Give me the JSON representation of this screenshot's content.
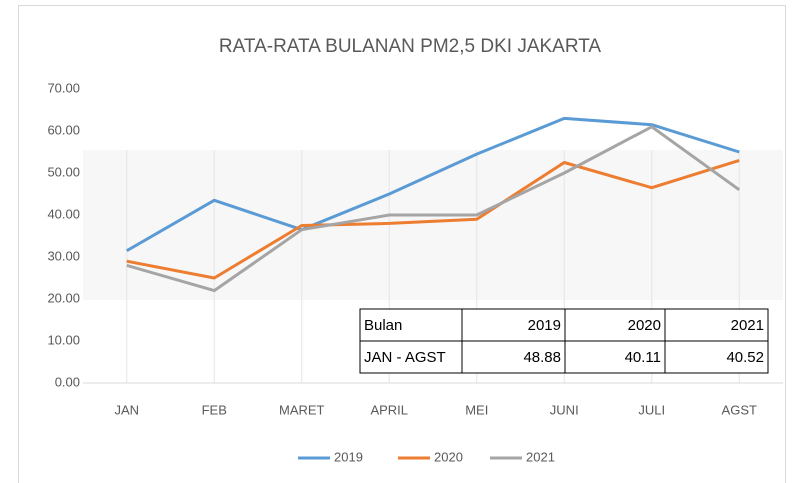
{
  "chart_data": {
    "type": "line",
    "title": "RATA-RATA BULANAN PM2,5 DKI JAKARTA",
    "categories": [
      "JAN",
      "FEB",
      "MARET",
      "APRIL",
      "MEI",
      "JUNI",
      "JULI",
      "AGST"
    ],
    "series": [
      {
        "name": "2019",
        "color": "#5b9bd5",
        "values": [
          31.5,
          43.5,
          36.5,
          45,
          54.5,
          63,
          61.5,
          55
        ]
      },
      {
        "name": "2020",
        "color": "#ed7d31",
        "values": [
          29,
          25,
          37.5,
          38,
          39,
          52.5,
          46.5,
          53
        ]
      },
      {
        "name": "2021",
        "color": "#a5a5a5",
        "values": [
          28,
          22,
          36.5,
          40,
          40,
          50,
          61,
          46
        ]
      }
    ],
    "ylim": [
      0,
      70
    ],
    "yticks": [
      {
        "value": 0,
        "label": "0.00"
      },
      {
        "value": 10,
        "label": "10.00"
      },
      {
        "value": 20,
        "label": "20.00"
      },
      {
        "value": 30,
        "label": "30.00"
      },
      {
        "value": 40,
        "label": "40.00"
      },
      {
        "value": 50,
        "label": "50.00"
      },
      {
        "value": 60,
        "label": "60.00"
      },
      {
        "value": 70,
        "label": "70.00"
      }
    ],
    "legend": "bottom",
    "table": {
      "rows": [
        [
          "Bulan",
          "2019",
          "2020",
          "2021"
        ],
        [
          "JAN - AGST",
          48.88,
          40.11,
          40.52
        ]
      ]
    }
  }
}
